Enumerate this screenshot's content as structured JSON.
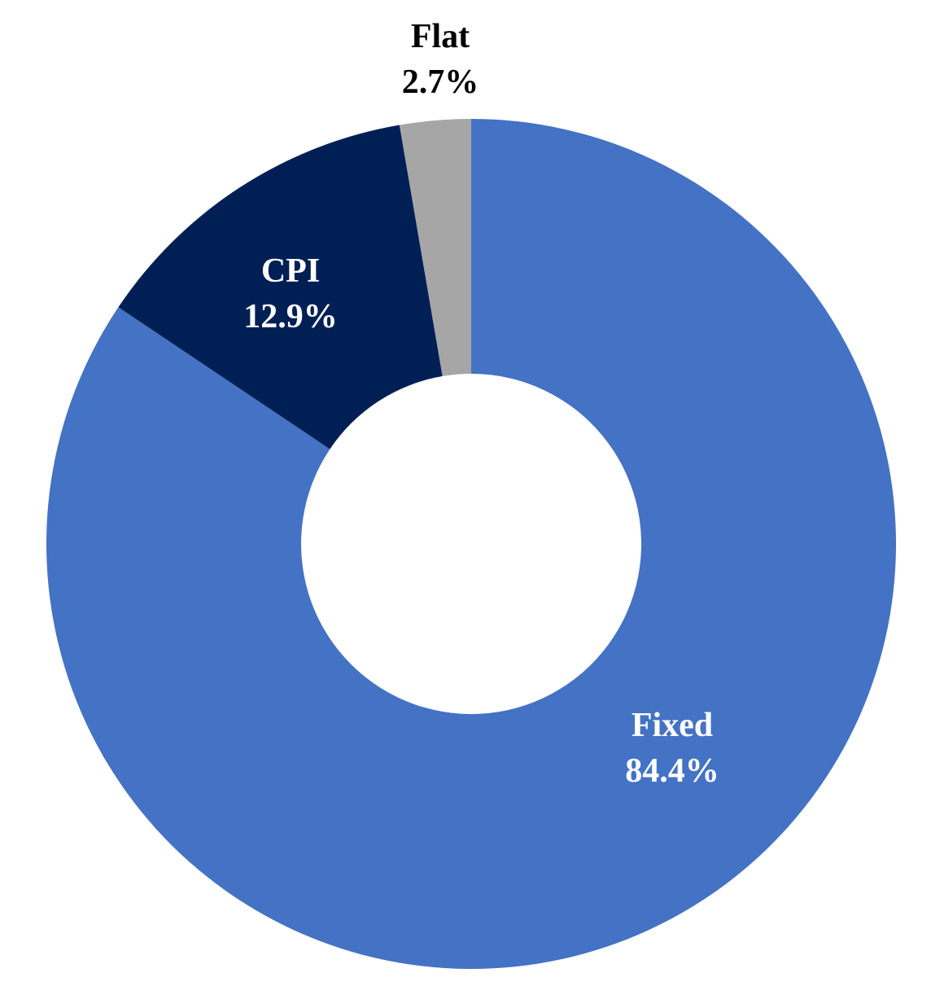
{
  "chart_data": {
    "type": "pie",
    "title": "",
    "slices": [
      {
        "name": "Fixed",
        "value": 84.4,
        "label": "84.4%",
        "color": "#4472C4",
        "label_color": "#ffffff",
        "label_placement": "inside"
      },
      {
        "name": "CPI",
        "value": 12.9,
        "label": "12.9%",
        "color": "#002055",
        "label_color": "#ffffff",
        "label_placement": "inside"
      },
      {
        "name": "Flat",
        "value": 2.7,
        "label": "2.7%",
        "color": "#A6A6A6",
        "label_color": "#000000",
        "label_placement": "outside"
      }
    ],
    "style": "donut",
    "start_angle": "12 o'clock",
    "direction": "clockwise",
    "legend": "none"
  }
}
